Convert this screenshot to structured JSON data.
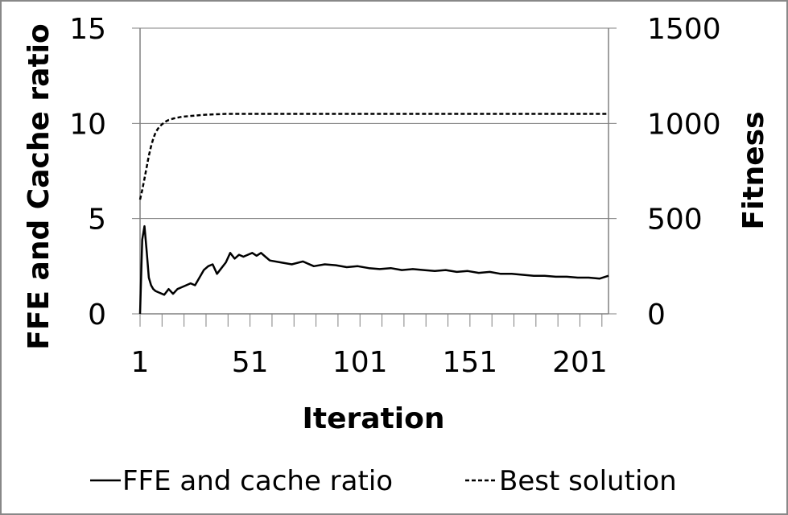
{
  "chart_data": {
    "type": "line",
    "xlabel": "Iteration",
    "ylabel_left": "FFE and Cache ratio",
    "ylabel_right": "Fitness",
    "x_ticks": [
      "1",
      "51",
      "101",
      "151",
      "201"
    ],
    "x_tick_values": [
      1,
      51,
      101,
      151,
      201
    ],
    "xlim": [
      1,
      214
    ],
    "ylim_left": [
      0,
      15
    ],
    "y_ticks_left": [
      "0",
      "5",
      "10",
      "15"
    ],
    "y_tick_values_left": [
      0,
      5,
      10,
      15
    ],
    "ylim_right": [
      0,
      1500
    ],
    "y_ticks_right": [
      "0",
      "500",
      "1000",
      "1500"
    ],
    "y_tick_values_right": [
      0,
      500,
      1000,
      1500
    ],
    "grid": "horizontal",
    "legend_position": "bottom",
    "series": [
      {
        "name": "FFE and cache ratio",
        "axis": "left",
        "style": "solid",
        "color": "#000000",
        "x": [
          1,
          2,
          3,
          4,
          5,
          6,
          7,
          8,
          10,
          12,
          14,
          16,
          18,
          20,
          22,
          24,
          26,
          28,
          30,
          32,
          34,
          36,
          38,
          40,
          42,
          44,
          46,
          48,
          50,
          52,
          54,
          56,
          58,
          60,
          65,
          70,
          75,
          80,
          85,
          90,
          95,
          100,
          105,
          110,
          115,
          120,
          125,
          130,
          135,
          140,
          145,
          150,
          155,
          160,
          165,
          170,
          175,
          180,
          185,
          190,
          195,
          200,
          205,
          210,
          214
        ],
        "values": [
          0.0,
          3.9,
          4.6,
          3.3,
          1.9,
          1.5,
          1.3,
          1.2,
          1.1,
          1.0,
          1.3,
          1.05,
          1.3,
          1.4,
          1.5,
          1.6,
          1.5,
          1.9,
          2.3,
          2.5,
          2.6,
          2.1,
          2.4,
          2.7,
          3.2,
          2.9,
          3.1,
          3.0,
          3.1,
          3.2,
          3.05,
          3.2,
          3.0,
          2.8,
          2.7,
          2.6,
          2.75,
          2.5,
          2.6,
          2.55,
          2.45,
          2.5,
          2.4,
          2.35,
          2.4,
          2.3,
          2.35,
          2.3,
          2.25,
          2.3,
          2.2,
          2.25,
          2.15,
          2.2,
          2.1,
          2.1,
          2.05,
          2.0,
          2.0,
          1.95,
          1.95,
          1.9,
          1.9,
          1.85,
          2.0
        ]
      },
      {
        "name": "Best solution",
        "axis": "right",
        "style": "dashed",
        "color": "#000000",
        "x": [
          1,
          2,
          3,
          4,
          5,
          6,
          7,
          8,
          9,
          10,
          11,
          12,
          13,
          14,
          16,
          18,
          20,
          25,
          30,
          40,
          50,
          60,
          80,
          100,
          120,
          150,
          180,
          200,
          214
        ],
        "values": [
          600,
          650,
          710,
          770,
          830,
          880,
          920,
          950,
          970,
          985,
          995,
          1005,
          1012,
          1018,
          1025,
          1030,
          1035,
          1040,
          1045,
          1050,
          1050,
          1050,
          1050,
          1050,
          1050,
          1050,
          1050,
          1050,
          1050
        ]
      }
    ]
  }
}
